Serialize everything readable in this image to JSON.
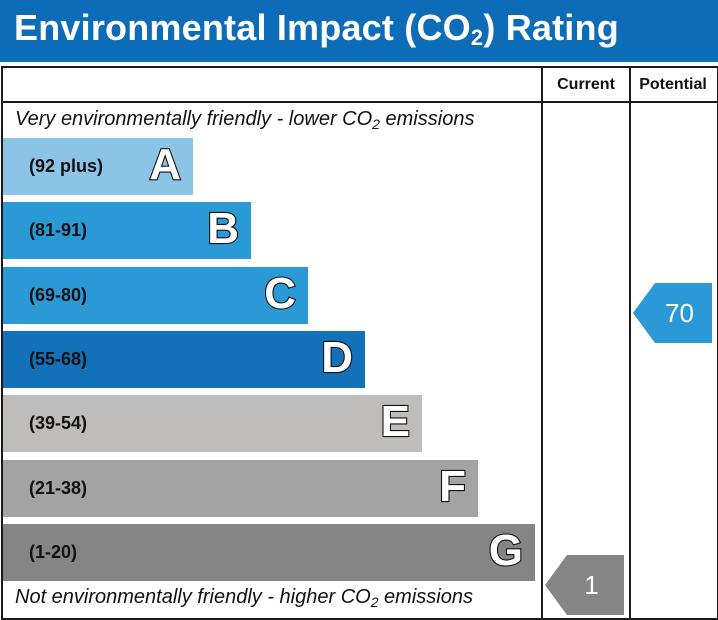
{
  "title": {
    "prefix": "Environmental Impact (CO",
    "subscript": "2",
    "suffix": ") Rating"
  },
  "columns": {
    "current": "Current",
    "potential": "Potential"
  },
  "captions": {
    "top_prefix": "Very environmentally friendly - lower CO",
    "top_sub": "2",
    "top_suffix": " emissions",
    "bottom_prefix": "Not environmentally friendly - higher CO",
    "bottom_sub": "2",
    "bottom_suffix": " emissions"
  },
  "chart_data": {
    "type": "bar",
    "bands": [
      {
        "letter": "A",
        "range": "(92 plus)",
        "color": "#8cc4e8"
      },
      {
        "letter": "B",
        "range": "(81-91)",
        "color": "#2a99d5"
      },
      {
        "letter": "C",
        "range": "(69-80)",
        "color": "#2a99d5"
      },
      {
        "letter": "D",
        "range": "(55-68)",
        "color": "#1271b8"
      },
      {
        "letter": "E",
        "range": "(39-54)",
        "color": "#bebdbb"
      },
      {
        "letter": "F",
        "range": "(21-38)",
        "color": "#a3a3a3"
      },
      {
        "letter": "G",
        "range": "(1-20)",
        "color": "#858585"
      }
    ],
    "current": {
      "value": "1",
      "band": "G",
      "color": "#858585"
    },
    "potential": {
      "value": "70",
      "band": "C",
      "color": "#2a99d5"
    }
  }
}
